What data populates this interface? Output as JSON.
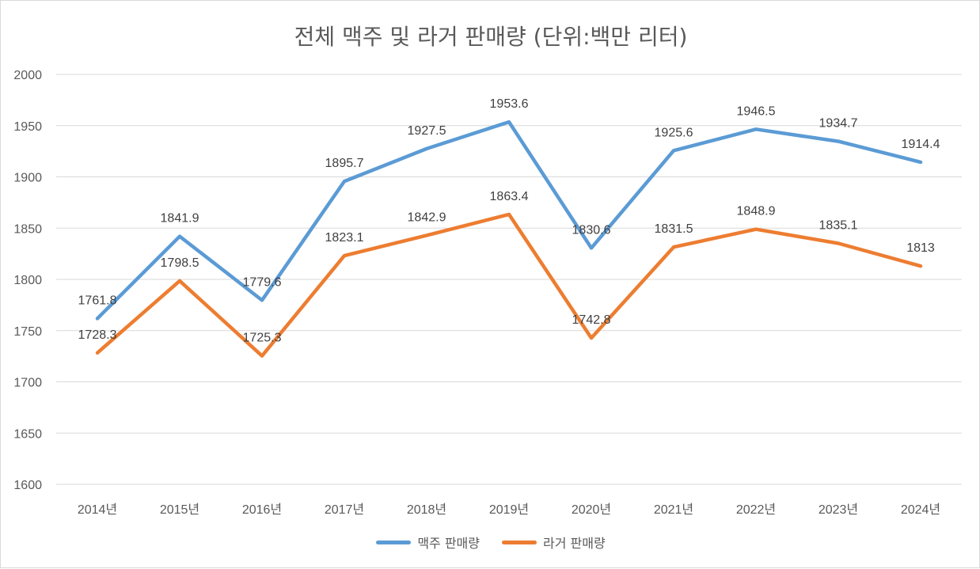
{
  "chart_data": {
    "type": "line",
    "title": "전체 맥주 및 라거 판매량 (단위:백만 리터)",
    "categories": [
      "2014년",
      "2015년",
      "2016년",
      "2017년",
      "2018년",
      "2019년",
      "2020년",
      "2021년",
      "2022년",
      "2023년",
      "2024년"
    ],
    "series": [
      {
        "name": "맥주 판매량",
        "color": "#5b9bd5",
        "values": [
          1761.8,
          1841.9,
          1779.6,
          1895.7,
          1927.5,
          1953.6,
          1830.6,
          1925.6,
          1946.5,
          1934.7,
          1914.4
        ],
        "labels": [
          "1761.8",
          "1841.9",
          "1779.6",
          "1895.7",
          "1927.5",
          "1953.6",
          "1830.6",
          "1925.6",
          "1946.5",
          "1934.7",
          "1914.4"
        ]
      },
      {
        "name": "라거 판매량",
        "color": "#ed7d31",
        "values": [
          1728.3,
          1798.5,
          1725.3,
          1823.1,
          1842.9,
          1863.4,
          1742.8,
          1831.5,
          1848.9,
          1835.1,
          1813
        ],
        "labels": [
          "1728.3",
          "1798.5",
          "1725.3",
          "1823.1",
          "1842.9",
          "1863.4",
          "1742.8",
          "1831.5",
          "1848.9",
          "1835.1",
          "1813"
        ]
      }
    ],
    "ylim": [
      1600,
      2000
    ],
    "yticks": [
      "1600",
      "1650",
      "1700",
      "1750",
      "1800",
      "1850",
      "1900",
      "1950",
      "2000"
    ],
    "grid": true,
    "legend": "bottom"
  }
}
